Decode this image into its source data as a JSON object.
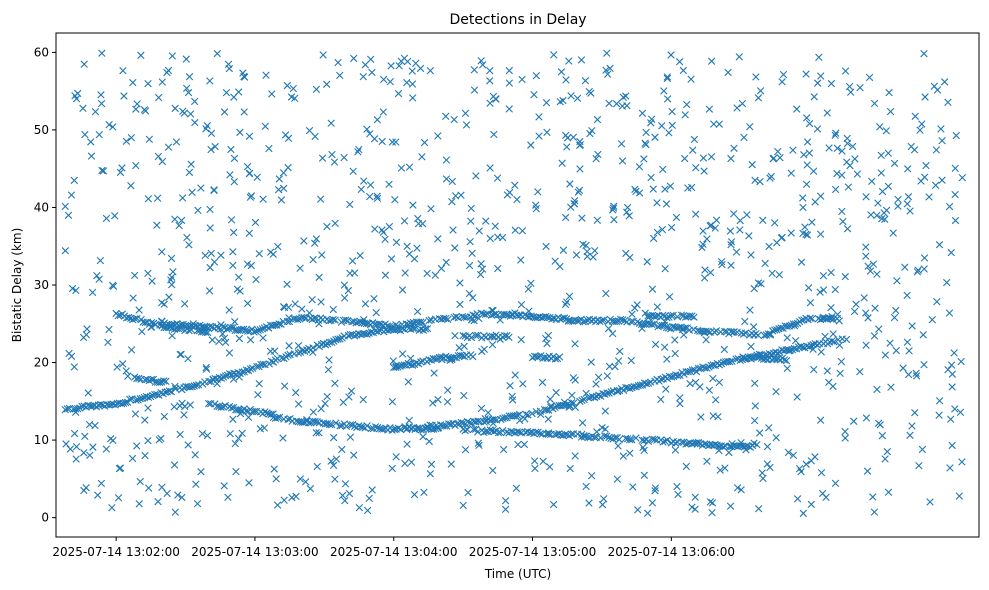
{
  "chart_data": {
    "type": "scatter",
    "title": "Detections in Delay",
    "xlabel": "Time (UTC)",
    "ylabel": "Bistatic Delay (km)",
    "marker": "x",
    "color": "#1f77b4",
    "xlim_seconds_of_day": [
      47494,
      47893
    ],
    "ylim": [
      -2.5,
      62.5
    ],
    "x_ticks": [
      {
        "t": 47520,
        "label": "2025-07-14 13:02:00"
      },
      {
        "t": 47580,
        "label": "2025-07-14 13:03:00"
      },
      {
        "t": 47640,
        "label": "2025-07-14 13:04:00"
      },
      {
        "t": 47700,
        "label": "2025-07-14 13:05:00"
      },
      {
        "t": 47760,
        "label": "2025-07-14 13:06:00"
      }
    ],
    "y_ticks": [
      {
        "v": 0,
        "label": "0"
      },
      {
        "v": 10,
        "label": "10"
      },
      {
        "v": 20,
        "label": "20"
      },
      {
        "v": 30,
        "label": "30"
      },
      {
        "v": 40,
        "label": "40"
      },
      {
        "v": 50,
        "label": "50"
      },
      {
        "v": 60,
        "label": "60"
      }
    ],
    "tracks": [
      {
        "name": "",
        "points": [
          [
            47498,
            14.0
          ],
          [
            47520,
            14.7
          ],
          [
            47540,
            16.0
          ],
          [
            47560,
            17.6
          ],
          [
            47580,
            19.3
          ],
          [
            47600,
            21.4
          ],
          [
            47620,
            23.4
          ],
          [
            47640,
            24.3
          ],
          [
            47655,
            24.2
          ]
        ]
      },
      {
        "name": "",
        "points": [
          [
            47644,
            11.6
          ],
          [
            47660,
            11.8
          ],
          [
            47680,
            12.5
          ],
          [
            47700,
            13.5
          ],
          [
            47720,
            15.0
          ],
          [
            47740,
            16.6
          ],
          [
            47760,
            18.2
          ],
          [
            47780,
            19.8
          ],
          [
            47800,
            21.0
          ],
          [
            47820,
            22.2
          ],
          [
            47836,
            23.0
          ]
        ]
      },
      {
        "name": "",
        "points": [
          [
            47640,
            24.7
          ],
          [
            47660,
            25.6
          ],
          [
            47680,
            26.3
          ],
          [
            47700,
            26.0
          ],
          [
            47720,
            25.4
          ],
          [
            47740,
            25.4
          ],
          [
            47760,
            24.5
          ],
          [
            47780,
            24.0
          ],
          [
            47800,
            23.5
          ],
          [
            47820,
            25.8
          ],
          [
            47834,
            25.5
          ]
        ]
      },
      {
        "name": "",
        "points": [
          [
            47588,
            13.0
          ],
          [
            47600,
            12.4
          ],
          [
            47620,
            11.9
          ],
          [
            47640,
            11.4
          ],
          [
            47660,
            11.5
          ]
        ]
      },
      {
        "name": "",
        "points": [
          [
            47670,
            11.3
          ],
          [
            47700,
            10.9
          ],
          [
            47720,
            10.6
          ],
          [
            47740,
            10.2
          ],
          [
            47760,
            9.8
          ],
          [
            47780,
            9.3
          ],
          [
            47796,
            9.2
          ]
        ]
      },
      {
        "name": "",
        "points": [
          [
            47540,
            25.0
          ],
          [
            47560,
            24.6
          ],
          [
            47580,
            24.1
          ],
          [
            47600,
            25.8
          ],
          [
            47620,
            25.3
          ],
          [
            47640,
            24.7
          ]
        ]
      },
      {
        "name": "",
        "points": [
          [
            47520,
            26.3
          ],
          [
            47540,
            24.6
          ],
          [
            47560,
            23.8
          ]
        ]
      },
      {
        "name": "",
        "points": [
          [
            47528,
            18.0
          ],
          [
            47535,
            17.7
          ],
          [
            47542,
            17.5
          ]
        ]
      },
      {
        "name": "",
        "points": [
          [
            47560,
            14.7
          ],
          [
            47575,
            13.9
          ],
          [
            47588,
            13.3
          ]
        ]
      },
      {
        "name": "",
        "points": [
          [
            47640,
            19.3
          ],
          [
            47660,
            20.6
          ],
          [
            47675,
            20.9
          ]
        ]
      },
      {
        "name": "",
        "points": [
          [
            47700,
            20.8
          ],
          [
            47712,
            20.6
          ]
        ]
      },
      {
        "name": "",
        "points": [
          [
            47750,
            25.9
          ],
          [
            47770,
            26.0
          ]
        ]
      },
      {
        "name": "",
        "points": [
          [
            47790,
            20.7
          ],
          [
            47810,
            20.4
          ]
        ]
      },
      {
        "name": "",
        "points": [
          [
            47670,
            23.3
          ],
          [
            47690,
            23.4
          ]
        ]
      }
    ]
  }
}
